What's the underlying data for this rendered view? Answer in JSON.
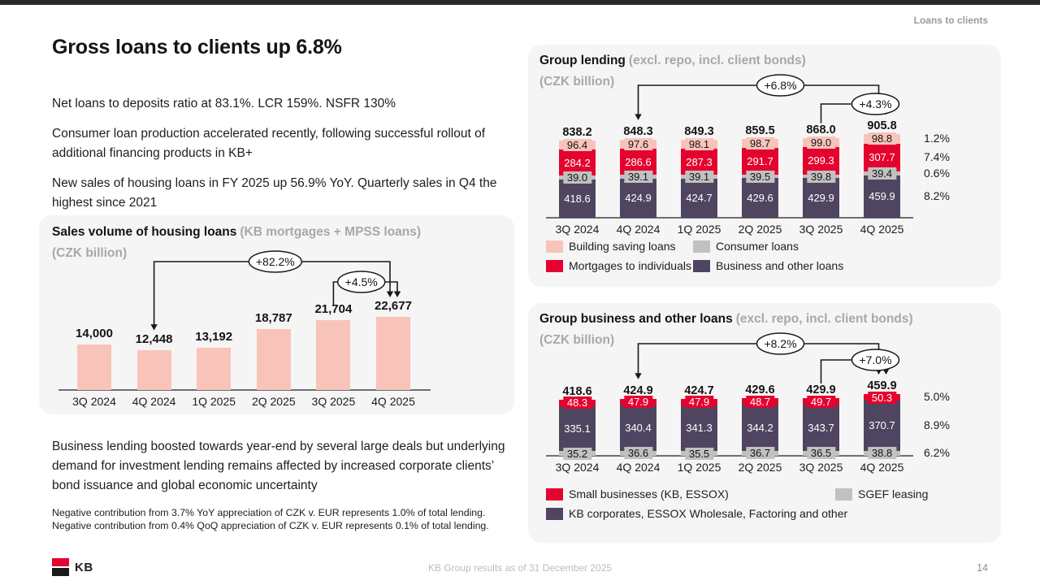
{
  "page": {
    "section_label": "Loans to clients",
    "footer_caption": "KB Group results as of 31 December 2025",
    "page_number": "14",
    "logo_text": "KB",
    "accent_red": "#e4032e"
  },
  "left": {
    "title": "Gross loans to clients up 6.8%",
    "paragraphs": [
      "Net loans to deposits ratio at 83.1%. LCR 159%. NSFR 130%",
      "Consumer loan production accelerated recently, following successful rollout of additional financing products in KB+",
      "New sales of housing loans in FY 2025 up 56.9% YoY. Quarterly sales in Q4 the highest since 2021"
    ],
    "business_paragraph": "Business lending boosted towards year-end by several large deals but underlying demand for investment lending remains affected by increased corporate clients’ bond issuance and global economic uncertainty",
    "note_lines": [
      "Negative contribution from 3.7% YoY appreciation of CZK v. EUR represents 1.0% of total lending.",
      "Negative contribution from 0.4% QoQ appreciation of CZK v. EUR represents 0.1% of total lending."
    ]
  },
  "chart_data": [
    {
      "id": "housing",
      "type": "bar",
      "title_bold": "Sales volume of housing loans",
      "title_gray": "(KB mortgages + MPSS loans)",
      "subtitle": "(CZK billion)",
      "categories": [
        "3Q 2024",
        "4Q 2024",
        "1Q 2025",
        "2Q 2025",
        "3Q 2025",
        "4Q 2025"
      ],
      "values": [
        14000,
        12448,
        13192,
        18787,
        21704,
        22677
      ],
      "value_labels": [
        "14,000",
        "12,448",
        "13,192",
        "18,787",
        "21,704",
        "22,677"
      ],
      "bar_color": "#f8c4ba",
      "annotations": [
        {
          "label": "+82.2%",
          "from": 1,
          "to": 5
        },
        {
          "label": "+4.5%",
          "from": 4,
          "to": 5
        }
      ]
    },
    {
      "id": "group_lending",
      "type": "stacked_bar",
      "title_bold": "Group lending",
      "title_gray": "(excl. repo, incl. client bonds)",
      "subtitle": "(CZK billion)",
      "categories": [
        "3Q 2024",
        "4Q 2024",
        "1Q 2025",
        "2Q 2025",
        "3Q 2025",
        "4Q 2025"
      ],
      "totals": [
        "838.2",
        "848.3",
        "849.3",
        "859.5",
        "868.0",
        "905.8"
      ],
      "series": [
        {
          "name": "Building saving loans",
          "color": "#f8c4ba",
          "text_color": "#141414",
          "values": [
            "96.4",
            "97.6",
            "98.1",
            "98.7",
            "99.0",
            "98.8"
          ],
          "growth": "1.2%"
        },
        {
          "name": "Mortgages to individuals",
          "color": "#e4032e",
          "text_color": "#ffffff",
          "values": [
            "284.2",
            "286.6",
            "287.3",
            "291.7",
            "299.3",
            "307.7"
          ],
          "growth": "7.4%"
        },
        {
          "name": "Consumer loans",
          "color": "#c1c1c1",
          "text_color": "#141414",
          "values": [
            "39.0",
            "39.1",
            "39.1",
            "39.5",
            "39.8",
            "39.4"
          ],
          "growth": "0.6%"
        },
        {
          "name": "Business and other loans",
          "color": "#4f4560",
          "text_color": "#ffffff",
          "values": [
            "418.6",
            "424.9",
            "424.7",
            "429.6",
            "429.9",
            "459.9"
          ],
          "growth": "8.2%"
        }
      ],
      "annotations": [
        {
          "label": "+6.8%",
          "from": 1,
          "to": 5
        },
        {
          "label": "+4.3%",
          "from": 4,
          "to": 5
        }
      ],
      "legend": [
        [
          {
            "label": "Building saving loans",
            "color": "#f8c4ba"
          },
          {
            "label": "Consumer loans",
            "color": "#c1c1c1"
          }
        ],
        [
          {
            "label": "Mortgages to individuals",
            "color": "#e4032e"
          },
          {
            "label": "Business and other loans",
            "color": "#4f4560"
          }
        ]
      ]
    },
    {
      "id": "business_loans",
      "type": "stacked_bar",
      "title_bold": "Group business and other loans",
      "title_gray": "(excl. repo, incl. client bonds)",
      "subtitle": "(CZK billion)",
      "categories": [
        "3Q 2024",
        "4Q 2024",
        "1Q 2025",
        "2Q 2025",
        "3Q 2025",
        "4Q 2025"
      ],
      "totals": [
        "418.6",
        "424.9",
        "424.7",
        "429.6",
        "429.9",
        "459.9"
      ],
      "series": [
        {
          "name": "Small businesses (KB, ESSOX)",
          "color": "#e4032e",
          "text_color": "#ffffff",
          "values": [
            "48.3",
            "47.9",
            "47.9",
            "48.7",
            "49.7",
            "50.3"
          ],
          "growth": "5.0%"
        },
        {
          "name": "KB corporates, ESSOX Wholesale, Factoring and other",
          "color": "#4f4560",
          "text_color": "#ffffff",
          "values": [
            "335.1",
            "340.4",
            "341.3",
            "344.2",
            "343.7",
            "370.7"
          ],
          "growth": "8.9%"
        },
        {
          "name": "SGEF leasing",
          "color": "#c1c1c1",
          "text_color": "#141414",
          "values": [
            "35.2",
            "36.6",
            "35.5",
            "36.7",
            "36.5",
            "38.8"
          ],
          "growth": "6.2%"
        }
      ],
      "annotations": [
        {
          "label": "+8.2%",
          "from": 1,
          "to": 5
        },
        {
          "label": "+7.0%",
          "from": 4,
          "to": 5
        }
      ],
      "legend": [
        [
          {
            "label": "Small businesses (KB, ESSOX)",
            "color": "#e4032e"
          },
          {
            "label": "SGEF leasing",
            "color": "#c1c1c1"
          }
        ],
        [
          {
            "label": "KB corporates, ESSOX Wholesale, Factoring and other",
            "color": "#4f4560"
          }
        ]
      ]
    }
  ]
}
